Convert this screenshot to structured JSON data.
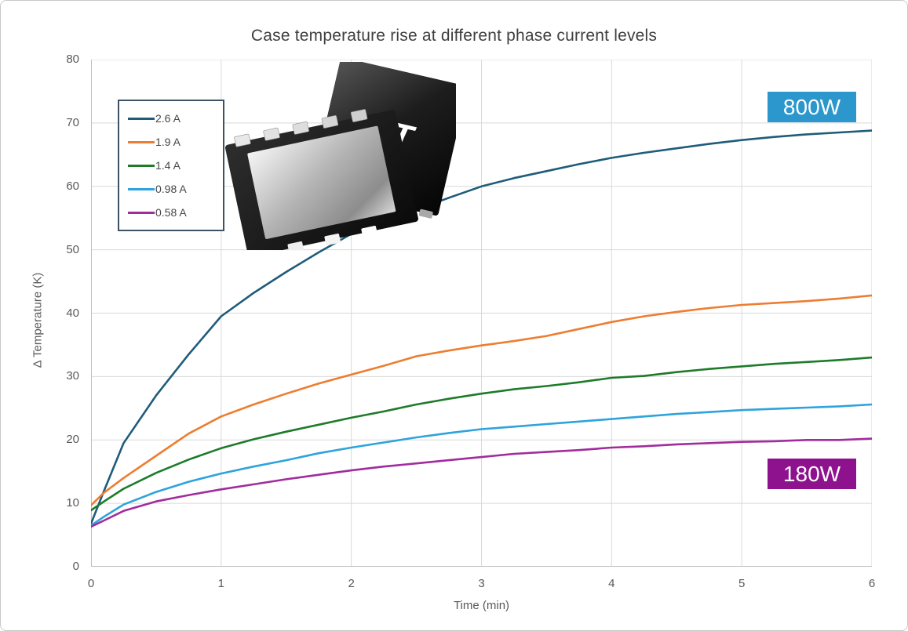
{
  "title": "Case temperature rise at different phase current levels",
  "annotations": [
    {
      "text": "800W",
      "bg": "#2B97CC"
    },
    {
      "text": "180W",
      "bg": "#8E118E"
    }
  ],
  "colors": {
    "grid": "#d9d9d9",
    "axis": "#bfbfbf",
    "tick_text": "#595959",
    "title_text": "#3f3f3f"
  },
  "chip_image": {
    "logo_text": "ST"
  },
  "chart_data": {
    "type": "line",
    "title": "Case temperature rise at different phase current levels",
    "xlabel": "Time (min)",
    "ylabel": "Δ Temperature (K)",
    "xlim": [
      0,
      6
    ],
    "ylim": [
      0,
      80
    ],
    "x_ticks": [
      0,
      1,
      2,
      3,
      4,
      5,
      6
    ],
    "y_ticks": [
      0,
      10,
      20,
      30,
      40,
      50,
      60,
      70,
      80
    ],
    "grid": true,
    "legend_position": "top-left",
    "x": [
      0,
      0.1,
      0.25,
      0.5,
      0.75,
      1,
      1.25,
      1.5,
      1.75,
      2,
      2.25,
      2.5,
      2.75,
      3,
      3.25,
      3.5,
      3.75,
      4,
      4.25,
      4.5,
      4.75,
      5,
      5.25,
      5.5,
      5.75,
      6
    ],
    "series": [
      {
        "name": "2.6 A",
        "color": "#1f5c7a",
        "values": [
          6.8,
          12,
          19.5,
          27,
          33.5,
          39.5,
          43.2,
          46.5,
          49.6,
          52.5,
          54.5,
          56.3,
          58.2,
          60,
          61.3,
          62.4,
          63.5,
          64.5,
          65.3,
          66,
          66.7,
          67.3,
          67.8,
          68.2,
          68.5,
          68.8
        ]
      },
      {
        "name": "1.9 A",
        "color": "#ed7d31",
        "values": [
          9.7,
          11.7,
          14,
          17.5,
          21,
          23.7,
          25.6,
          27.3,
          28.9,
          30.3,
          31.7,
          33.2,
          34.1,
          34.9,
          35.6,
          36.4,
          37.5,
          38.6,
          39.5,
          40.2,
          40.8,
          41.3,
          41.6,
          41.9,
          42.3,
          42.8
        ]
      },
      {
        "name": "1.4 A",
        "color": "#1e7b2a",
        "values": [
          8.9,
          10.3,
          12.3,
          14.8,
          16.9,
          18.7,
          20.1,
          21.3,
          22.4,
          23.5,
          24.5,
          25.6,
          26.5,
          27.3,
          28,
          28.5,
          29.1,
          29.8,
          30.1,
          30.7,
          31.2,
          31.6,
          32,
          32.3,
          32.6,
          33
        ]
      },
      {
        "name": "0.98 A",
        "color": "#2ea3dc",
        "values": [
          6.5,
          7.9,
          9.8,
          11.8,
          13.4,
          14.7,
          15.8,
          16.8,
          17.9,
          18.8,
          19.6,
          20.4,
          21.1,
          21.7,
          22.1,
          22.5,
          22.9,
          23.3,
          23.7,
          24.1,
          24.4,
          24.7,
          24.9,
          25.1,
          25.3,
          25.6
        ]
      },
      {
        "name": "0.58 A",
        "color": "#a12c9c",
        "values": [
          6.3,
          7.3,
          8.8,
          10.3,
          11.3,
          12.2,
          13,
          13.8,
          14.5,
          15.2,
          15.8,
          16.3,
          16.8,
          17.3,
          17.8,
          18.1,
          18.4,
          18.8,
          19,
          19.3,
          19.5,
          19.7,
          19.8,
          20,
          20,
          20.2
        ]
      }
    ]
  }
}
